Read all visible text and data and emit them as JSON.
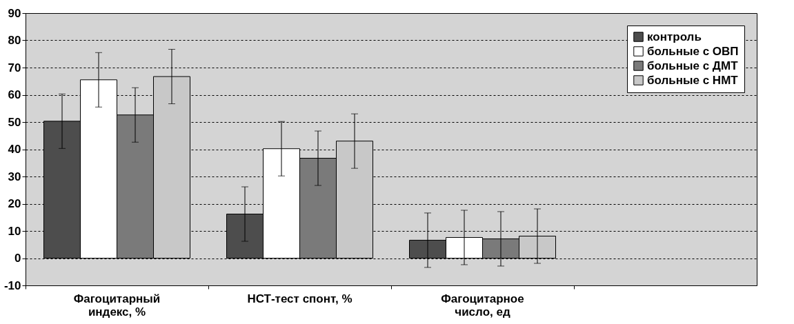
{
  "chart_data": {
    "type": "bar",
    "categories": [
      "Фагоцитарный\nиндекс, %",
      "НСТ-тест спонт, %",
      "Фагоцитарное\nчисло, ед",
      null
    ],
    "series": [
      {
        "name": "контроль",
        "color": "#4d4d4d",
        "values": [
          50.3,
          16.2,
          6.6,
          null
        ],
        "errors": [
          10,
          10,
          10,
          null
        ]
      },
      {
        "name": "больные с ОВП",
        "color": "#ffffff",
        "values": [
          65.5,
          40.2,
          7.6,
          null
        ],
        "errors": [
          10,
          10,
          10,
          null
        ]
      },
      {
        "name": "больные с ДМТ",
        "color": "#7a7a7a",
        "values": [
          52.6,
          36.7,
          7.1,
          null
        ],
        "errors": [
          10,
          10,
          10,
          null
        ]
      },
      {
        "name": "больные с НМТ",
        "color": "#c8c8c8",
        "values": [
          66.7,
          43,
          8.1,
          null
        ],
        "errors": [
          10,
          10,
          10,
          null
        ]
      }
    ],
    "ylim": [
      -10,
      90
    ],
    "yticks": [
      -10,
      0,
      10,
      20,
      30,
      40,
      50,
      60,
      70,
      80,
      90
    ],
    "grid": "y",
    "legend": "top right"
  }
}
